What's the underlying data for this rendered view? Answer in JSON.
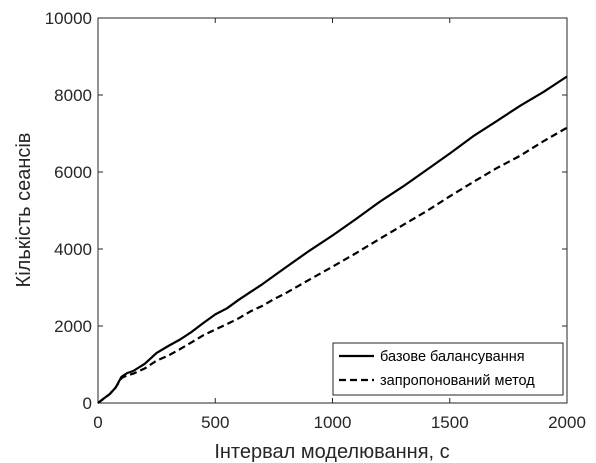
{
  "chart_data": {
    "type": "line",
    "xlabel": "Інтервал моделювання, с",
    "ylabel": "Кількість сеансів",
    "xlim": [
      0,
      2000
    ],
    "ylim": [
      0,
      10000
    ],
    "xticks": [
      0,
      500,
      1000,
      1500,
      2000
    ],
    "yticks": [
      0,
      2000,
      4000,
      6000,
      8000,
      10000
    ],
    "xtick_labels": [
      "0",
      "500",
      "1000",
      "1500",
      "2000"
    ],
    "ytick_labels": [
      "0",
      "2000",
      "4000",
      "6000",
      "8000",
      "10000"
    ],
    "grid": false,
    "legend_position": "bottom-right",
    "series": [
      {
        "name": "базове балансування",
        "style": "solid",
        "color": "#000000",
        "x": [
          0,
          25,
          50,
          75,
          100,
          125,
          150,
          200,
          250,
          300,
          350,
          400,
          450,
          500,
          550,
          600,
          650,
          700,
          750,
          800,
          900,
          1000,
          1100,
          1200,
          1300,
          1400,
          1500,
          1600,
          1700,
          1800,
          1900,
          2000
        ],
        "y": [
          0,
          120,
          230,
          400,
          680,
          780,
          830,
          1020,
          1300,
          1480,
          1650,
          1850,
          2080,
          2300,
          2460,
          2680,
          2880,
          3080,
          3300,
          3520,
          3950,
          4350,
          4780,
          5220,
          5620,
          6050,
          6480,
          6930,
          7320,
          7720,
          8080,
          8480
        ]
      },
      {
        "name": "запропонований метод",
        "style": "dashed",
        "color": "#000000",
        "x": [
          0,
          25,
          50,
          75,
          100,
          125,
          150,
          200,
          250,
          300,
          350,
          400,
          450,
          500,
          550,
          600,
          650,
          700,
          750,
          800,
          900,
          1000,
          1100,
          1200,
          1300,
          1400,
          1500,
          1600,
          1700,
          1800,
          1900,
          2000
        ],
        "y": [
          0,
          120,
          230,
          400,
          650,
          720,
          760,
          900,
          1100,
          1230,
          1400,
          1580,
          1760,
          1910,
          2050,
          2200,
          2380,
          2520,
          2700,
          2850,
          3200,
          3540,
          3890,
          4260,
          4620,
          4980,
          5370,
          5740,
          6100,
          6420,
          6800,
          7150
        ]
      }
    ]
  }
}
